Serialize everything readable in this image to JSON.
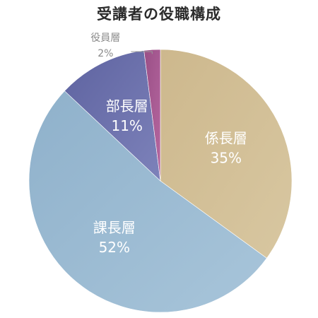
{
  "chart_data": {
    "type": "pie",
    "title": "受講者の役職構成",
    "categories": [
      "係長層",
      "課長層",
      "部長層",
      "役員層"
    ],
    "values": [
      35,
      52,
      11,
      2
    ],
    "value_labels": [
      "35%",
      "52%",
      "11%",
      "2%"
    ],
    "start_angle_deg": 0,
    "direction": "clockwise",
    "colors": {
      "係長層": [
        "#cdb88d",
        "#d8c7a1"
      ],
      "課長層": [
        "#8fb1cb",
        "#a8c5da"
      ],
      "部長層": [
        "#5e63a0",
        "#7d82ba"
      ],
      "役員層": [
        "#9a4f86",
        "#b667a0"
      ]
    },
    "label_colors": {
      "係長層": "#ffffff",
      "課長層": "#ffffff",
      "部長層": "#ffffff",
      "役員層": "#8a8a8a"
    },
    "callout_slices": [
      "役員層"
    ]
  }
}
